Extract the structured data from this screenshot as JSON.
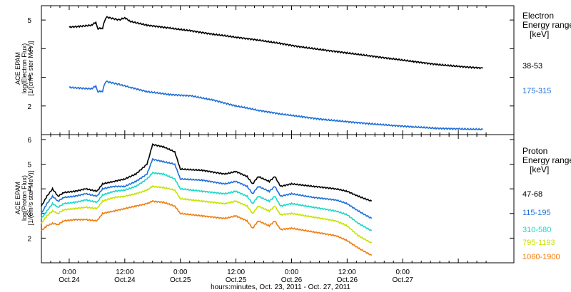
{
  "colors": {
    "black": "#000000",
    "blue": "#1e6fd9",
    "cyan": "#18d8c8",
    "yellow": "#c8e200",
    "orange": "#f07d10"
  },
  "chart_data": [
    {
      "type": "line",
      "panel": "electron",
      "ylabel_lines": [
        "ACE EPAM",
        "log(Electron Flux)",
        "[1/(cm²s ster MeV)]"
      ],
      "legend_title_lines": [
        "Electron",
        "Energy range",
        "[keV]"
      ],
      "ylim": [
        1,
        5.5
      ],
      "yticks": [
        2,
        3,
        4,
        5
      ],
      "xlim": [
        -0.25,
        4.0
      ],
      "xlabel": "hours:minutes, Oct. 23, 2011 - Oct. 27, 2011",
      "series": [
        {
          "name": "38-53",
          "color": "black",
          "points": [
            [
              0.0,
              4.75
            ],
            [
              0.1,
              4.78
            ],
            [
              0.2,
              4.82
            ],
            [
              0.24,
              4.92
            ],
            [
              0.26,
              4.7
            ],
            [
              0.3,
              4.72
            ],
            [
              0.32,
              4.98
            ],
            [
              0.34,
              5.1
            ],
            [
              0.45,
              5.0
            ],
            [
              0.5,
              5.08
            ],
            [
              0.55,
              4.95
            ],
            [
              0.7,
              4.82
            ],
            [
              0.9,
              4.72
            ],
            [
              1.1,
              4.62
            ],
            [
              1.3,
              4.5
            ],
            [
              1.5,
              4.4
            ],
            [
              1.7,
              4.3
            ],
            [
              1.9,
              4.18
            ],
            [
              2.1,
              4.05
            ],
            [
              2.3,
              3.95
            ],
            [
              2.5,
              3.85
            ],
            [
              2.7,
              3.75
            ],
            [
              2.9,
              3.65
            ],
            [
              3.1,
              3.55
            ],
            [
              3.3,
              3.45
            ],
            [
              3.5,
              3.38
            ],
            [
              3.72,
              3.32
            ]
          ]
        },
        {
          "name": "175-315",
          "color": "blue",
          "points": [
            [
              0.0,
              2.65
            ],
            [
              0.1,
              2.62
            ],
            [
              0.2,
              2.6
            ],
            [
              0.24,
              2.7
            ],
            [
              0.26,
              2.5
            ],
            [
              0.3,
              2.52
            ],
            [
              0.32,
              2.78
            ],
            [
              0.34,
              2.85
            ],
            [
              0.45,
              2.75
            ],
            [
              0.55,
              2.65
            ],
            [
              0.7,
              2.5
            ],
            [
              0.9,
              2.4
            ],
            [
              1.1,
              2.35
            ],
            [
              1.3,
              2.2
            ],
            [
              1.5,
              2.0
            ],
            [
              1.7,
              1.85
            ],
            [
              1.9,
              1.72
            ],
            [
              2.1,
              1.62
            ],
            [
              2.3,
              1.52
            ],
            [
              2.5,
              1.45
            ],
            [
              2.7,
              1.38
            ],
            [
              2.9,
              1.32
            ],
            [
              3.1,
              1.27
            ],
            [
              3.3,
              1.22
            ],
            [
              3.5,
              1.2
            ],
            [
              3.72,
              1.18
            ]
          ]
        }
      ]
    },
    {
      "type": "line",
      "panel": "proton",
      "ylabel_lines": [
        "ACE EPAM",
        "log(Proton Flux)",
        "[1/(cm²s ster MeV)]"
      ],
      "legend_title_lines": [
        "Proton",
        "Energy range",
        "[keV]"
      ],
      "ylim": [
        1,
        6.2
      ],
      "yticks": [
        2,
        3,
        4,
        5,
        6
      ],
      "xlim": [
        -0.25,
        4.0
      ],
      "xticks": [
        {
          "t": 0.0,
          "time": "0:00",
          "date": "Oct.24"
        },
        {
          "t": 0.5,
          "time": "12:00",
          "date": "Oct.24"
        },
        {
          "t": 1.0,
          "time": "0:00",
          "date": "Oct.25"
        },
        {
          "t": 1.5,
          "time": "12:00",
          "date": "Oct.25"
        },
        {
          "t": 2.0,
          "time": "0:00",
          "date": "Oct.26"
        },
        {
          "t": 2.5,
          "time": "12:00",
          "date": "Oct.26"
        },
        {
          "t": 3.0,
          "time": "0:00",
          "date": "Oct.27"
        }
      ],
      "series": [
        {
          "name": "47-68",
          "color": "black",
          "points": [
            [
              -0.25,
              3.3
            ],
            [
              -0.2,
              3.7
            ],
            [
              -0.15,
              4.0
            ],
            [
              -0.1,
              3.7
            ],
            [
              -0.05,
              3.85
            ],
            [
              0.05,
              3.9
            ],
            [
              0.15,
              4.0
            ],
            [
              0.25,
              3.9
            ],
            [
              0.3,
              4.2
            ],
            [
              0.4,
              4.3
            ],
            [
              0.5,
              4.4
            ],
            [
              0.6,
              4.6
            ],
            [
              0.7,
              5.0
            ],
            [
              0.75,
              5.8
            ],
            [
              0.85,
              5.7
            ],
            [
              0.95,
              5.5
            ],
            [
              1.0,
              4.8
            ],
            [
              1.2,
              4.75
            ],
            [
              1.4,
              4.6
            ],
            [
              1.5,
              4.7
            ],
            [
              1.6,
              4.5
            ],
            [
              1.65,
              4.2
            ],
            [
              1.7,
              4.5
            ],
            [
              1.8,
              4.3
            ],
            [
              1.85,
              4.5
            ],
            [
              1.9,
              4.1
            ],
            [
              2.0,
              4.2
            ],
            [
              2.2,
              4.1
            ],
            [
              2.4,
              4.0
            ],
            [
              2.5,
              3.9
            ],
            [
              2.6,
              3.7
            ],
            [
              2.72,
              3.5
            ]
          ]
        },
        {
          "name": "115-195",
          "color": "blue",
          "points": [
            [
              -0.25,
              3.0
            ],
            [
              -0.2,
              3.4
            ],
            [
              -0.15,
              3.7
            ],
            [
              -0.1,
              3.5
            ],
            [
              -0.05,
              3.65
            ],
            [
              0.05,
              3.7
            ],
            [
              0.15,
              3.8
            ],
            [
              0.25,
              3.7
            ],
            [
              0.3,
              4.0
            ],
            [
              0.4,
              4.1
            ],
            [
              0.5,
              4.1
            ],
            [
              0.6,
              4.3
            ],
            [
              0.7,
              4.6
            ],
            [
              0.75,
              5.2
            ],
            [
              0.85,
              5.1
            ],
            [
              0.95,
              5.0
            ],
            [
              1.0,
              4.4
            ],
            [
              1.2,
              4.35
            ],
            [
              1.4,
              4.2
            ],
            [
              1.5,
              4.3
            ],
            [
              1.6,
              4.1
            ],
            [
              1.65,
              3.8
            ],
            [
              1.7,
              4.1
            ],
            [
              1.8,
              3.9
            ],
            [
              1.85,
              4.1
            ],
            [
              1.9,
              3.7
            ],
            [
              2.0,
              3.8
            ],
            [
              2.2,
              3.65
            ],
            [
              2.4,
              3.55
            ],
            [
              2.5,
              3.4
            ],
            [
              2.6,
              3.1
            ],
            [
              2.72,
              2.8
            ]
          ]
        },
        {
          "name": "310-580",
          "color": "cyan",
          "points": [
            [
              -0.25,
              2.8
            ],
            [
              -0.2,
              3.1
            ],
            [
              -0.15,
              3.4
            ],
            [
              -0.1,
              3.25
            ],
            [
              -0.05,
              3.4
            ],
            [
              0.05,
              3.45
            ],
            [
              0.15,
              3.55
            ],
            [
              0.25,
              3.45
            ],
            [
              0.3,
              3.75
            ],
            [
              0.4,
              3.9
            ],
            [
              0.5,
              3.95
            ],
            [
              0.6,
              4.1
            ],
            [
              0.7,
              4.4
            ],
            [
              0.75,
              4.65
            ],
            [
              0.85,
              4.6
            ],
            [
              0.95,
              4.4
            ],
            [
              1.0,
              4.0
            ],
            [
              1.2,
              3.9
            ],
            [
              1.4,
              3.8
            ],
            [
              1.5,
              3.9
            ],
            [
              1.6,
              3.7
            ],
            [
              1.65,
              3.4
            ],
            [
              1.7,
              3.7
            ],
            [
              1.8,
              3.5
            ],
            [
              1.85,
              3.7
            ],
            [
              1.9,
              3.3
            ],
            [
              2.0,
              3.4
            ],
            [
              2.2,
              3.25
            ],
            [
              2.4,
              3.1
            ],
            [
              2.5,
              2.95
            ],
            [
              2.6,
              2.6
            ],
            [
              2.72,
              2.3
            ]
          ]
        },
        {
          "name": "795-1193",
          "color": "yellow",
          "points": [
            [
              -0.25,
              2.6
            ],
            [
              -0.2,
              2.9
            ],
            [
              -0.15,
              3.1
            ],
            [
              -0.1,
              3.0
            ],
            [
              -0.05,
              3.15
            ],
            [
              0.05,
              3.2
            ],
            [
              0.15,
              3.25
            ],
            [
              0.25,
              3.2
            ],
            [
              0.3,
              3.5
            ],
            [
              0.4,
              3.65
            ],
            [
              0.5,
              3.7
            ],
            [
              0.6,
              3.8
            ],
            [
              0.7,
              3.95
            ],
            [
              0.75,
              4.1
            ],
            [
              0.85,
              4.05
            ],
            [
              0.95,
              3.95
            ],
            [
              1.0,
              3.6
            ],
            [
              1.2,
              3.5
            ],
            [
              1.4,
              3.4
            ],
            [
              1.5,
              3.5
            ],
            [
              1.6,
              3.3
            ],
            [
              1.65,
              3.0
            ],
            [
              1.7,
              3.3
            ],
            [
              1.8,
              3.1
            ],
            [
              1.85,
              3.3
            ],
            [
              1.9,
              2.95
            ],
            [
              2.0,
              3.0
            ],
            [
              2.2,
              2.85
            ],
            [
              2.4,
              2.7
            ],
            [
              2.5,
              2.5
            ],
            [
              2.6,
              2.1
            ],
            [
              2.72,
              1.8
            ]
          ]
        },
        {
          "name": "1060-1900",
          "color": "orange",
          "points": [
            [
              -0.25,
              2.3
            ],
            [
              -0.2,
              2.5
            ],
            [
              -0.15,
              2.6
            ],
            [
              -0.1,
              2.55
            ],
            [
              -0.05,
              2.7
            ],
            [
              0.05,
              2.75
            ],
            [
              0.15,
              2.75
            ],
            [
              0.25,
              2.7
            ],
            [
              0.3,
              3.0
            ],
            [
              0.4,
              3.1
            ],
            [
              0.5,
              3.2
            ],
            [
              0.6,
              3.3
            ],
            [
              0.7,
              3.4
            ],
            [
              0.75,
              3.5
            ],
            [
              0.85,
              3.45
            ],
            [
              0.95,
              3.3
            ],
            [
              1.0,
              3.0
            ],
            [
              1.2,
              2.9
            ],
            [
              1.4,
              2.8
            ],
            [
              1.5,
              2.9
            ],
            [
              1.6,
              2.7
            ],
            [
              1.65,
              2.4
            ],
            [
              1.7,
              2.7
            ],
            [
              1.8,
              2.5
            ],
            [
              1.85,
              2.7
            ],
            [
              1.9,
              2.35
            ],
            [
              2.0,
              2.4
            ],
            [
              2.2,
              2.25
            ],
            [
              2.4,
              2.1
            ],
            [
              2.5,
              1.9
            ],
            [
              2.6,
              1.6
            ],
            [
              2.72,
              1.3
            ]
          ]
        }
      ]
    }
  ]
}
